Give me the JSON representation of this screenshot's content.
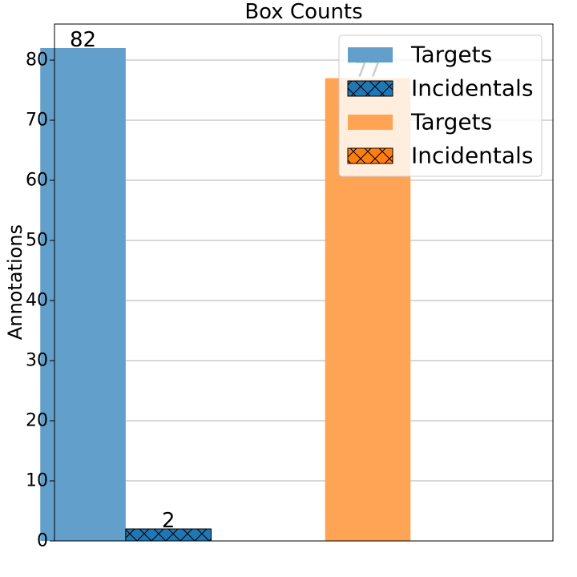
{
  "chart_data": {
    "type": "bar",
    "title": "Box Counts",
    "xlabel": "",
    "ylabel": "Annotations",
    "ylim": [
      0,
      86
    ],
    "yticks": [
      0,
      10,
      20,
      30,
      40,
      50,
      60,
      70,
      80
    ],
    "grid": "y",
    "legend_position": "upper-right",
    "series": [
      {
        "name": "Targets",
        "values": [
          82,
          null
        ],
        "color": "#62a0cb",
        "hatch": false
      },
      {
        "name": "Incidentals",
        "values": [
          2,
          null
        ],
        "color": "#1f77b4",
        "hatch": true
      },
      {
        "name": "Targets",
        "values": [
          null,
          77
        ],
        "color": "#ffa455",
        "hatch": false
      },
      {
        "name": "Incidentals",
        "values": [
          null,
          null
        ],
        "color": "#ff7f0e",
        "hatch": true
      }
    ],
    "data_labels": [
      {
        "series": 0,
        "group": 0,
        "text": "82"
      },
      {
        "series": 1,
        "group": 0,
        "text": "2"
      },
      {
        "series": 2,
        "group": 1,
        "text": "77"
      }
    ]
  }
}
